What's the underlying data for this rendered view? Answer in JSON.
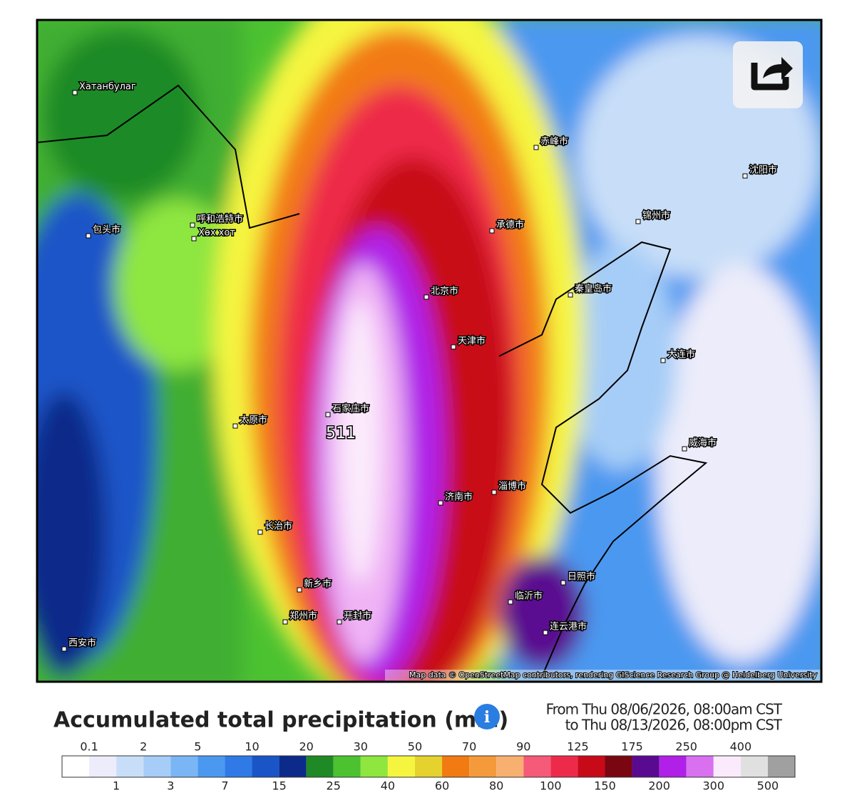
{
  "map": {
    "peak_label": "511",
    "attribution": "Map data © OpenStreetMap contributors, rendering GIScience Research Group @ Heidelberg University",
    "places": [
      "北京市",
      "天津市",
      "石家庄市",
      "济南市",
      "太原市",
      "郑州市",
      "开封市",
      "大连市",
      "威海市",
      "淄博市",
      "临沂市",
      "日照市",
      "连云港市",
      "呼和浩特市",
      "包头市",
      "承德市",
      "秦皇岛市",
      "锦州市",
      "沈阳市",
      "赤峰市",
      "西安市",
      "长治市",
      "新乡市",
      "Хатанбулаг",
      "Хөх хот"
    ]
  },
  "legend": {
    "title": "Accumulated total precipitation (mm)",
    "from": "From Thu 08/06/2026, 08:00am CST",
    "to": "to Thu 08/13/2026, 08:00pm CST",
    "thresholds": [
      0.1,
      1,
      2,
      3,
      5,
      7,
      10,
      15,
      20,
      25,
      30,
      40,
      50,
      60,
      70,
      80,
      90,
      100,
      125,
      150,
      175,
      200,
      250,
      300,
      400,
      500
    ],
    "colors": [
      "#ffffff",
      "#ececfa",
      "#c8def8",
      "#a6cdf7",
      "#7ab6f5",
      "#4b98f0",
      "#2f7ae6",
      "#1a55c8",
      "#0c2a8a",
      "#1f8a25",
      "#4cc231",
      "#8ee63f",
      "#f5f540",
      "#e5d22e",
      "#f27a12",
      "#f59a3a",
      "#f8b070",
      "#f55a78",
      "#ee2a4a",
      "#c80a18",
      "#7a0612",
      "#5a0a90",
      "#b020e8",
      "#d870f0",
      "#fbeafc",
      "#e0e0e0",
      "#a0a0a0"
    ]
  }
}
